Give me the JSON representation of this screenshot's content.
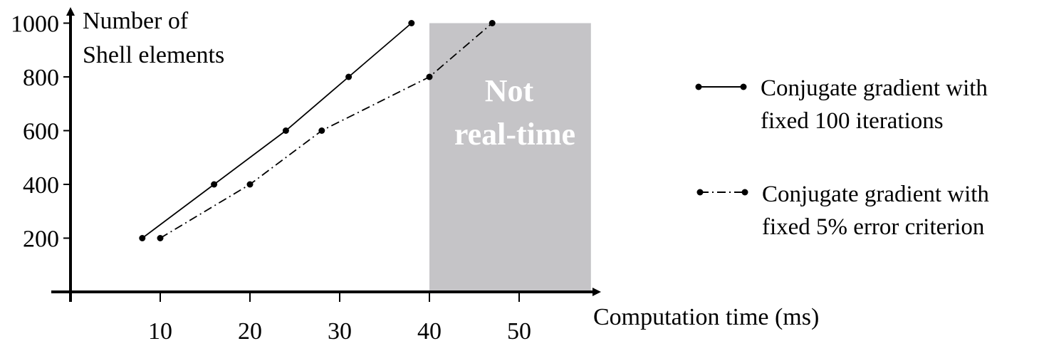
{
  "chart_data": {
    "type": "line",
    "x_axis": {
      "label": "Computation time (ms)",
      "ticks": [
        10,
        20,
        30,
        40,
        50
      ],
      "range": [
        0,
        58
      ]
    },
    "y_axis": {
      "label_line1": "Number of",
      "label_line2": "Shell elements",
      "ticks": [
        200,
        400,
        600,
        800,
        1000
      ],
      "range": [
        0,
        1000
      ]
    },
    "grid": false,
    "shaded_region": {
      "x_range": [
        40,
        58
      ],
      "y_range": [
        0,
        1000
      ],
      "color": "#c5c4c7",
      "label_line1": "Not",
      "label_line2": "real-time"
    },
    "series": [
      {
        "name_line1": "Conjugate gradient with",
        "name_line2": "fixed 100 iterations",
        "style": "solid",
        "x": [
          8,
          16,
          24,
          31,
          38
        ],
        "y": [
          200,
          400,
          600,
          800,
          1000
        ]
      },
      {
        "name_line1": "Conjugate gradient with",
        "name_line2": "fixed 5% error criterion",
        "style": "dash-dot",
        "x": [
          10,
          20,
          28,
          40,
          47
        ],
        "y": [
          200,
          400,
          600,
          800,
          1000
        ]
      }
    ],
    "legend_placement": "right"
  }
}
